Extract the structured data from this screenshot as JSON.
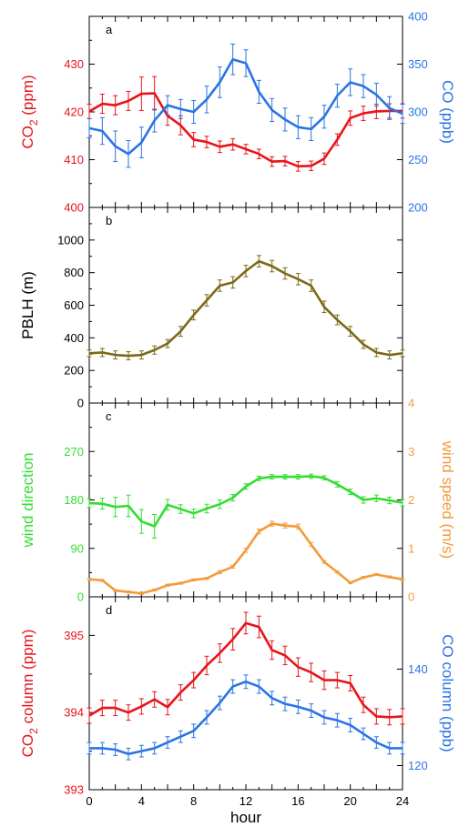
{
  "colors": {
    "red": "#e8131a",
    "blue": "#2b74e4",
    "olive": "#7a6a18",
    "green": "#33dd33",
    "orange": "#f39a3a",
    "black": "#000000"
  },
  "x_axis": {
    "label": "hour",
    "range": [
      0,
      24
    ],
    "ticks": [
      "0",
      "4",
      "8",
      "12",
      "16",
      "20",
      "24"
    ]
  },
  "chart_data": [
    {
      "id": "a",
      "panel_letter": "a",
      "type": "line",
      "left_axis": {
        "label_main": "CO",
        "label_sub": "2",
        "label_tail": " (ppm)",
        "range": [
          400,
          440
        ],
        "ticks": [
          "400",
          "410",
          "420",
          "430"
        ],
        "color": "#e8131a"
      },
      "right_axis": {
        "label": "CO (ppb)",
        "range": [
          200,
          400
        ],
        "ticks": [
          "200",
          "250",
          "300",
          "350",
          "400"
        ],
        "color": "#2b74e4"
      },
      "series": [
        {
          "axis": "left",
          "color": "#e8131a",
          "x": [
            0,
            1,
            2,
            3,
            4,
            5,
            6,
            7,
            8,
            9,
            10,
            11,
            12,
            13,
            14,
            15,
            16,
            17,
            18,
            19,
            20,
            21,
            22,
            23,
            24
          ],
          "y": [
            420.1,
            421.7,
            421.4,
            422.3,
            423.8,
            423.9,
            419.2,
            417.2,
            414.2,
            413.7,
            412.7,
            413.2,
            412.2,
            411.2,
            409.6,
            409.7,
            408.6,
            408.7,
            410.2,
            414.2,
            418.7,
            419.7,
            420.1,
            420.2,
            420.2
          ],
          "err": [
            1.5,
            2,
            2,
            2,
            3.5,
            3.5,
            2,
            2,
            1.5,
            1.2,
            1.2,
            1.2,
            1,
            1,
            1,
            1,
            1,
            1,
            1.2,
            1.2,
            1.5,
            1.5,
            1.5,
            1.5,
            1.5
          ]
        },
        {
          "axis": "right",
          "color": "#2b74e4",
          "x": [
            0,
            1,
            2,
            3,
            4,
            5,
            6,
            7,
            8,
            9,
            10,
            11,
            12,
            13,
            14,
            15,
            16,
            17,
            18,
            19,
            20,
            21,
            22,
            23,
            24
          ],
          "y": [
            283,
            280,
            264,
            256,
            268,
            291,
            307,
            303,
            300,
            313,
            331,
            355,
            351,
            321,
            302,
            292,
            284,
            282,
            295,
            317,
            331,
            327,
            318,
            304,
            298
          ],
          "err": [
            10,
            14,
            16,
            14,
            16,
            12,
            10,
            10,
            12,
            14,
            16,
            16,
            14,
            12,
            12,
            12,
            12,
            12,
            12,
            12,
            14,
            12,
            12,
            12,
            10
          ]
        }
      ]
    },
    {
      "id": "b",
      "panel_letter": "b",
      "type": "line",
      "left_axis": {
        "label": "PBLH (m)",
        "range": [
          0,
          1200
        ],
        "ticks": [
          "0",
          "200",
          "400",
          "600",
          "800",
          "1000"
        ],
        "color": "#000000"
      },
      "series": [
        {
          "axis": "left",
          "color": "#7a6a18",
          "x": [
            0,
            1,
            2,
            3,
            4,
            5,
            6,
            7,
            8,
            9,
            10,
            11,
            12,
            13,
            14,
            15,
            16,
            17,
            18,
            19,
            20,
            21,
            22,
            23,
            24
          ],
          "y": [
            305,
            310,
            295,
            290,
            295,
            325,
            365,
            440,
            540,
            630,
            720,
            740,
            810,
            870,
            840,
            795,
            760,
            720,
            590,
            510,
            440,
            360,
            310,
            295,
            305
          ],
          "err": [
            20,
            25,
            25,
            25,
            25,
            25,
            25,
            30,
            30,
            35,
            35,
            35,
            35,
            35,
            35,
            35,
            35,
            35,
            35,
            30,
            30,
            25,
            25,
            25,
            20
          ]
        }
      ]
    },
    {
      "id": "c",
      "panel_letter": "c",
      "type": "line",
      "left_axis": {
        "label": "wind direction",
        "range": [
          0,
          360
        ],
        "ticks": [
          "0",
          "90",
          "180",
          "270"
        ],
        "color": "#33dd33"
      },
      "right_axis": {
        "label": "wind speed (m/s)",
        "range": [
          0,
          4
        ],
        "ticks": [
          "0",
          "1",
          "2",
          "3",
          "4"
        ],
        "color": "#f39a3a"
      },
      "series": [
        {
          "axis": "left",
          "color": "#33dd33",
          "x": [
            0,
            1,
            2,
            3,
            4,
            5,
            6,
            7,
            8,
            9,
            10,
            11,
            12,
            13,
            14,
            15,
            16,
            17,
            18,
            19,
            20,
            21,
            22,
            23,
            24
          ],
          "y": [
            174,
            173,
            167,
            169,
            140,
            131,
            171,
            163,
            155,
            164,
            172,
            184,
            205,
            220,
            223,
            223,
            223,
            224,
            221,
            209,
            195,
            180,
            183,
            179,
            175
          ],
          "err": [
            8,
            10,
            18,
            20,
            22,
            22,
            10,
            8,
            8,
            8,
            8,
            6,
            5,
            4,
            4,
            4,
            4,
            4,
            4,
            5,
            5,
            6,
            6,
            6,
            6
          ]
        },
        {
          "axis": "right",
          "color": "#f39a3a",
          "x": [
            0,
            1,
            2,
            3,
            4,
            5,
            6,
            7,
            8,
            9,
            10,
            11,
            12,
            13,
            14,
            15,
            16,
            17,
            18,
            19,
            20,
            21,
            22,
            23,
            24
          ],
          "y": [
            0.36,
            0.34,
            0.13,
            0.1,
            0.07,
            0.14,
            0.24,
            0.28,
            0.35,
            0.38,
            0.51,
            0.62,
            0.96,
            1.35,
            1.51,
            1.47,
            1.45,
            1.08,
            0.72,
            0.51,
            0.29,
            0.4,
            0.46,
            0.41,
            0.36
          ],
          "err": [
            0.02,
            0.02,
            0.02,
            0.02,
            0.02,
            0.02,
            0.02,
            0.02,
            0.02,
            0.02,
            0.03,
            0.03,
            0.04,
            0.05,
            0.05,
            0.05,
            0.05,
            0.04,
            0.03,
            0.02,
            0.02,
            0.02,
            0.02,
            0.02,
            0.02
          ]
        }
      ]
    },
    {
      "id": "d",
      "panel_letter": "d",
      "type": "line",
      "left_axis": {
        "label_main": "CO",
        "label_sub": "2",
        "label_tail": " column (ppm)",
        "range": [
          393,
          395.5
        ],
        "ticks": [
          "393",
          "394",
          "395"
        ],
        "color": "#e8131a"
      },
      "right_axis": {
        "label": "CO column (ppb)",
        "range": [
          115,
          155
        ],
        "ticks": [
          "120",
          "140"
        ],
        "color": "#2b74e4"
      },
      "series": [
        {
          "axis": "left",
          "color": "#e8131a",
          "x": [
            0,
            1,
            2,
            3,
            4,
            5,
            6,
            7,
            8,
            9,
            10,
            11,
            12,
            13,
            14,
            15,
            16,
            17,
            18,
            19,
            20,
            21,
            22,
            23,
            24
          ],
          "y": [
            393.96,
            394.06,
            394.06,
            394.0,
            394.08,
            394.17,
            394.07,
            394.26,
            394.42,
            394.61,
            394.77,
            394.95,
            395.16,
            395.11,
            394.81,
            394.74,
            394.59,
            394.52,
            394.42,
            394.42,
            394.38,
            394.1,
            393.95,
            393.94,
            393.95
          ],
          "err": [
            0.1,
            0.1,
            0.1,
            0.1,
            0.1,
            0.1,
            0.1,
            0.1,
            0.1,
            0.12,
            0.12,
            0.14,
            0.14,
            0.14,
            0.12,
            0.12,
            0.12,
            0.12,
            0.12,
            0.1,
            0.1,
            0.1,
            0.1,
            0.1,
            0.1
          ]
        },
        {
          "axis": "right",
          "color": "#2b74e4",
          "x": [
            0,
            1,
            2,
            3,
            4,
            5,
            6,
            7,
            8,
            9,
            10,
            11,
            12,
            13,
            14,
            15,
            16,
            17,
            18,
            19,
            20,
            21,
            22,
            23,
            24
          ],
          "y": [
            123.6,
            123.6,
            123.3,
            122.4,
            123.0,
            123.6,
            124.8,
            126.0,
            127.2,
            130.0,
            133.0,
            136.4,
            137.4,
            136.4,
            134.0,
            132.8,
            132.2,
            131.4,
            130.0,
            129.4,
            128.4,
            126.6,
            124.8,
            123.6,
            123.6
          ],
          "err": [
            1.2,
            1.2,
            1.2,
            1.2,
            1.2,
            1.2,
            1.2,
            1.2,
            1.4,
            1.4,
            1.4,
            1.4,
            1.4,
            1.4,
            1.4,
            1.4,
            1.4,
            1.4,
            1.4,
            1.4,
            1.4,
            1.2,
            1.2,
            1.2,
            1.2
          ]
        }
      ]
    }
  ]
}
